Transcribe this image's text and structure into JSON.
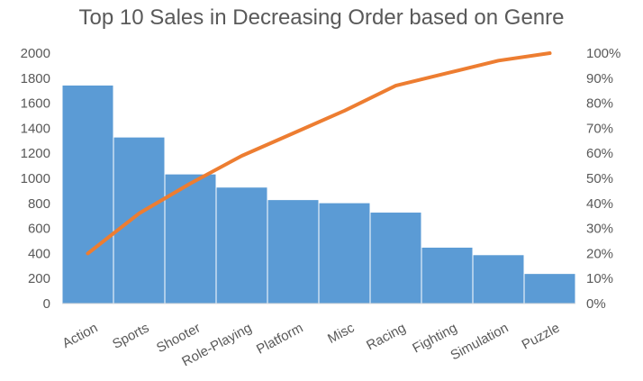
{
  "chart_data": {
    "type": "bar",
    "title": "Top 10 Sales in Decreasing Order based on Genre",
    "categories": [
      "Action",
      "Sports",
      "Shooter",
      "Role-Playing",
      "Platform",
      "Misc",
      "Racing",
      "Fighting",
      "Simulation",
      "Puzzle"
    ],
    "series": [
      {
        "type": "bar",
        "values": [
          1745,
          1330,
          1035,
          930,
          830,
          805,
          730,
          450,
          390,
          240
        ],
        "color": "#5b9bd5"
      },
      {
        "type": "line",
        "values": [
          0.2,
          0.36,
          0.48,
          0.59,
          0.68,
          0.77,
          0.87,
          0.92,
          0.97,
          1.0
        ],
        "color": "#ed7d31",
        "axis": "right"
      }
    ],
    "ylim": [
      0,
      2000
    ],
    "yticks": [
      "0",
      "200",
      "400",
      "600",
      "800",
      "1000",
      "1200",
      "1400",
      "1600",
      "1800",
      "2000"
    ],
    "y2lim": [
      0,
      1
    ],
    "y2ticks": [
      "0%",
      "10%",
      "20%",
      "30%",
      "40%",
      "50%",
      "60%",
      "70%",
      "80%",
      "90%",
      "100%"
    ],
    "xlabel": "",
    "ylabel": "",
    "grid": false,
    "legend": "none"
  }
}
